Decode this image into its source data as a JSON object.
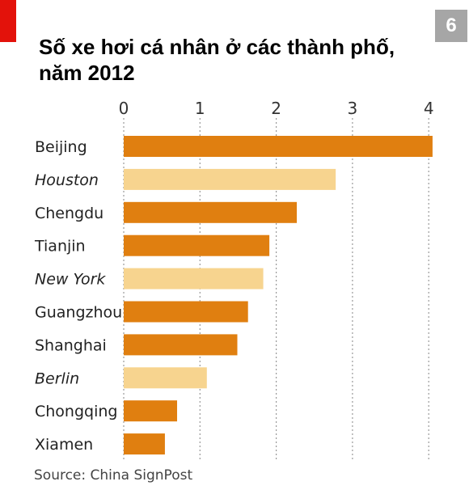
{
  "page_badge": "6",
  "colors": {
    "accent_red": "#e3120b",
    "badge_gray": "#a6a6a6",
    "china_bar": "#e07f10",
    "other_bar": "#f7d48f",
    "gridline": "#999999"
  },
  "chart_data": {
    "type": "bar",
    "orientation": "horizontal",
    "title_line1": "Số xe hơi cá nhân ở các thành phố,",
    "title_line2": "năm 2012",
    "xlabel": "",
    "ylabel": "",
    "xlim": [
      0,
      4.2
    ],
    "x_ticks": [
      "0",
      "1",
      "2",
      "3",
      "4"
    ],
    "grid": true,
    "grid_style": "dotted-vertical",
    "categories": [
      "Beijing",
      "Houston",
      "Chengdu",
      "Tianjin",
      "New York",
      "Guangzhou",
      "Shanghai",
      "Berlin",
      "Chongqing",
      "Xiamen"
    ],
    "values": [
      4.05,
      2.78,
      2.27,
      1.91,
      1.83,
      1.63,
      1.49,
      1.09,
      0.7,
      0.54
    ],
    "italic": [
      false,
      true,
      false,
      false,
      true,
      false,
      false,
      true,
      false,
      false
    ],
    "bar_colors": [
      "#e07f10",
      "#f7d48f",
      "#e07f10",
      "#e07f10",
      "#f7d48f",
      "#e07f10",
      "#e07f10",
      "#f7d48f",
      "#e07f10",
      "#e07f10"
    ],
    "source": "Source: China SignPost"
  }
}
